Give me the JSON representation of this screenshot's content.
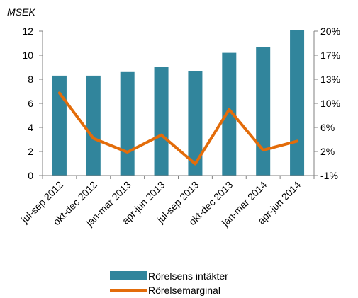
{
  "chart_data": {
    "type": "bar",
    "y_unit_label": "MSEK",
    "categories": [
      "jul-sep 2012",
      "okt-dec 2012",
      "jan-mar 2013",
      "apr-jun 2013",
      "jul-sep 2013",
      "okt-dec 2013",
      "jan-mar 2014",
      "apr-jun 2014"
    ],
    "series": [
      {
        "name": "Rörelsens intäkter",
        "type": "bar",
        "axis": "left",
        "color": "#31859c",
        "values": [
          8.3,
          8.3,
          8.6,
          9.0,
          8.7,
          10.2,
          10.7,
          12.1
        ]
      },
      {
        "name": "Rörelsemarginal",
        "type": "line",
        "axis": "right",
        "color": "#e36c0a",
        "values": [
          11.0,
          4.4,
          2.4,
          4.9,
          0.7,
          8.6,
          2.7,
          4.0
        ]
      }
    ],
    "y_left": {
      "ylim": [
        0,
        12
      ],
      "ticks": [
        "0",
        "2",
        "4",
        "6",
        "8",
        "10",
        "12"
      ]
    },
    "y_right": {
      "ylim": [
        -1,
        20
      ],
      "ticks": [
        "-1%",
        "2%",
        "6%",
        "10%",
        "13%",
        "17%",
        "20%"
      ]
    },
    "grid": false,
    "legend": "bottom"
  }
}
